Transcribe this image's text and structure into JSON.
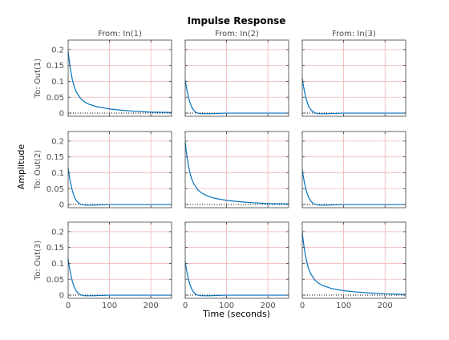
{
  "chart_data": {
    "type": "line",
    "title": "Impulse Response",
    "xlabel": "Time (seconds)",
    "ylabel": "Amplitude",
    "xlim": [
      0,
      250
    ],
    "ylim": [
      -0.01,
      0.23
    ],
    "xticks": [
      0,
      100,
      200
    ],
    "yticks": [
      0,
      0.05,
      0.1,
      0.15,
      0.2
    ],
    "ytick_labels": [
      "0",
      "0.05",
      "0.1",
      "0.15",
      "0.2"
    ],
    "grid": true,
    "colors": {
      "line": "#0072bd",
      "grid": "#f3b6b6",
      "axes": "#404040",
      "zero_line": "#000000"
    },
    "inputs": [
      "From: In(1)",
      "From: In(2)",
      "From: In(3)"
    ],
    "outputs": [
      "To: Out(1)",
      "To: Out(2)",
      "To: Out(3)"
    ],
    "responses": [
      [
        {
          "x": [
            0,
            2,
            5,
            10,
            15,
            20,
            30,
            40,
            50,
            70,
            100,
            130,
            160,
            200,
            250
          ],
          "y": [
            0.195,
            0.172,
            0.142,
            0.106,
            0.082,
            0.066,
            0.046,
            0.035,
            0.028,
            0.02,
            0.013,
            0.009,
            0.006,
            0.003,
            0.002
          ]
        },
        {
          "x": [
            0,
            2,
            5,
            10,
            15,
            20,
            25,
            30,
            40,
            60,
            80,
            100,
            150,
            200,
            250
          ],
          "y": [
            0.105,
            0.088,
            0.066,
            0.039,
            0.021,
            0.01,
            0.003,
            0.0,
            -0.002,
            -0.002,
            -0.001,
            0.0,
            0.0,
            0.0,
            0.0
          ]
        },
        {
          "x": [
            0,
            2,
            5,
            10,
            15,
            20,
            25,
            30,
            40,
            60,
            80,
            100,
            150,
            200,
            250
          ],
          "y": [
            0.11,
            0.092,
            0.07,
            0.042,
            0.023,
            0.012,
            0.005,
            0.001,
            -0.002,
            -0.002,
            -0.001,
            0.0,
            0.0,
            0.0,
            0.0
          ]
        }
      ],
      [
        {
          "x": [
            0,
            2,
            5,
            10,
            15,
            20,
            25,
            30,
            40,
            60,
            80,
            100,
            150,
            200,
            250
          ],
          "y": [
            0.115,
            0.096,
            0.073,
            0.044,
            0.024,
            0.012,
            0.005,
            0.001,
            -0.002,
            -0.002,
            -0.001,
            0.0,
            0.0,
            0.0,
            0.0
          ]
        },
        {
          "x": [
            0,
            2,
            5,
            10,
            15,
            20,
            30,
            40,
            50,
            70,
            100,
            130,
            160,
            200,
            250
          ],
          "y": [
            0.197,
            0.174,
            0.144,
            0.108,
            0.083,
            0.067,
            0.047,
            0.036,
            0.029,
            0.02,
            0.013,
            0.009,
            0.006,
            0.003,
            0.002
          ]
        },
        {
          "x": [
            0,
            2,
            5,
            10,
            15,
            20,
            25,
            30,
            40,
            60,
            80,
            100,
            150,
            200,
            250
          ],
          "y": [
            0.11,
            0.092,
            0.07,
            0.042,
            0.023,
            0.012,
            0.005,
            0.001,
            -0.002,
            -0.002,
            -0.001,
            0.0,
            0.0,
            0.0,
            0.0
          ]
        }
      ],
      [
        {
          "x": [
            0,
            2,
            5,
            10,
            15,
            20,
            25,
            30,
            40,
            60,
            80,
            100,
            150,
            200,
            250
          ],
          "y": [
            0.115,
            0.096,
            0.073,
            0.044,
            0.024,
            0.012,
            0.005,
            0.001,
            -0.002,
            -0.002,
            -0.001,
            0.0,
            0.0,
            0.0,
            0.0
          ]
        },
        {
          "x": [
            0,
            2,
            5,
            10,
            15,
            20,
            25,
            30,
            40,
            60,
            80,
            100,
            150,
            200,
            250
          ],
          "y": [
            0.105,
            0.088,
            0.066,
            0.039,
            0.021,
            0.01,
            0.003,
            0.0,
            -0.002,
            -0.002,
            -0.001,
            0.0,
            0.0,
            0.0,
            0.0
          ]
        },
        {
          "x": [
            0,
            2,
            5,
            10,
            15,
            20,
            30,
            40,
            50,
            70,
            100,
            130,
            160,
            200,
            250
          ],
          "y": [
            0.198,
            0.175,
            0.145,
            0.109,
            0.084,
            0.068,
            0.048,
            0.037,
            0.03,
            0.021,
            0.014,
            0.01,
            0.007,
            0.004,
            0.002
          ]
        }
      ]
    ]
  }
}
